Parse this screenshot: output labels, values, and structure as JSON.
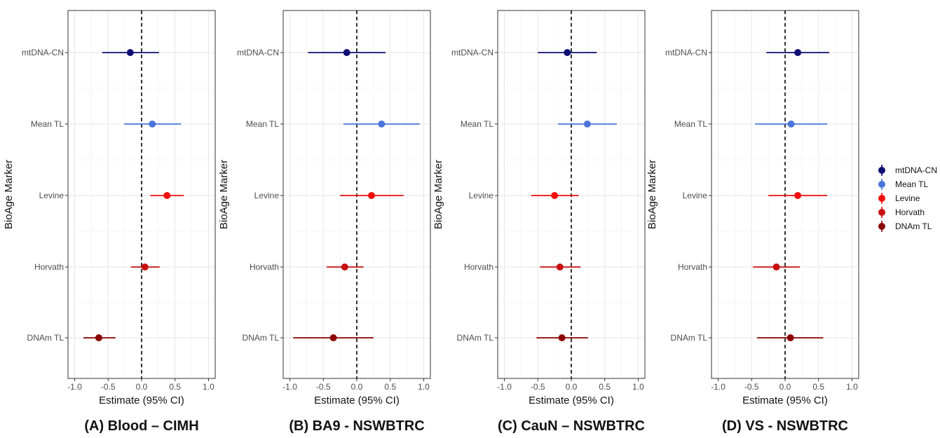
{
  "chart_data": [
    {
      "type": "scatter",
      "caption": "(A) Blood – CIMH",
      "xlabel": "Estimate (95% CI)",
      "ylabel": "BioAge Marker",
      "xlim": [
        -1.1,
        1.1
      ],
      "xticks": [
        "-1.0",
        "-0.5",
        "0.0",
        "0.5",
        "1.0"
      ],
      "reference_line": 0,
      "categories": [
        "mtDNA-CN",
        "Mean TL",
        "Levine",
        "Horvath",
        "DNAm TL"
      ],
      "estimate": [
        -0.17,
        0.16,
        0.38,
        0.05,
        -0.64
      ],
      "ci_low": [
        -0.59,
        -0.26,
        0.13,
        -0.16,
        -0.87
      ],
      "ci_high": [
        0.26,
        0.59,
        0.63,
        0.27,
        -0.39
      ]
    },
    {
      "type": "scatter",
      "caption": "(B) BA9 - NSWBTRC",
      "xlabel": "Estimate (95% CI)",
      "ylabel": "BioAge Marker",
      "xlim": [
        -1.1,
        1.1
      ],
      "xticks": [
        "-1.0",
        "-0.5",
        "0.0",
        "0.5",
        "1.0"
      ],
      "reference_line": 0,
      "categories": [
        "mtDNA-CN",
        "Mean TL",
        "Levine",
        "Horvath",
        "DNAm TL"
      ],
      "estimate": [
        -0.15,
        0.37,
        0.22,
        -0.18,
        -0.35
      ],
      "ci_low": [
        -0.73,
        -0.2,
        -0.25,
        -0.45,
        -0.95
      ],
      "ci_high": [
        0.43,
        0.94,
        0.7,
        0.1,
        0.25
      ]
    },
    {
      "type": "scatter",
      "caption": "(C) CauN – NSWBTRC",
      "xlabel": "Estimate (95% CI)",
      "ylabel": "BioAge Marker",
      "xlim": [
        -1.1,
        1.1
      ],
      "xticks": [
        "-1.0",
        "-0.5",
        "0.0",
        "0.5",
        "1.0"
      ],
      "reference_line": 0,
      "categories": [
        "mtDNA-CN",
        "Mean TL",
        "Levine",
        "Horvath",
        "DNAm TL"
      ],
      "estimate": [
        -0.06,
        0.24,
        -0.25,
        -0.17,
        -0.14
      ],
      "ci_low": [
        -0.5,
        -0.2,
        -0.6,
        -0.47,
        -0.52
      ],
      "ci_high": [
        0.38,
        0.68,
        0.11,
        0.14,
        0.25
      ]
    },
    {
      "type": "scatter",
      "caption": "(D) VS - NSWBTRC",
      "xlabel": "Estimate (95% CI)",
      "ylabel": "BioAge Marker",
      "xlim": [
        -1.1,
        1.1
      ],
      "xticks": [
        "-1.0",
        "-0.5",
        "0.0",
        "0.5",
        "1.0"
      ],
      "reference_line": 0,
      "categories": [
        "mtDNA-CN",
        "Mean TL",
        "Levine",
        "Horvath",
        "DNAm TL"
      ],
      "estimate": [
        0.19,
        0.09,
        0.19,
        -0.13,
        0.08
      ],
      "ci_low": [
        -0.28,
        -0.45,
        -0.25,
        -0.48,
        -0.42
      ],
      "ci_high": [
        0.66,
        0.63,
        0.63,
        0.22,
        0.57
      ]
    }
  ],
  "legend": {
    "placement": "right",
    "entries": [
      {
        "label": "mtDNA-CN",
        "color": "#0d0d73"
      },
      {
        "label": "Mean TL",
        "color": "#4a74d9"
      },
      {
        "label": "Levine",
        "color": "#f20d0d"
      },
      {
        "label": "Horvath",
        "color": "#c80f0f"
      },
      {
        "label": "DNAm TL",
        "color": "#8b0000"
      }
    ]
  },
  "series_colors": [
    "#0d0d73",
    "#4a74d9",
    "#f20d0d",
    "#c80f0f",
    "#8b0000"
  ]
}
